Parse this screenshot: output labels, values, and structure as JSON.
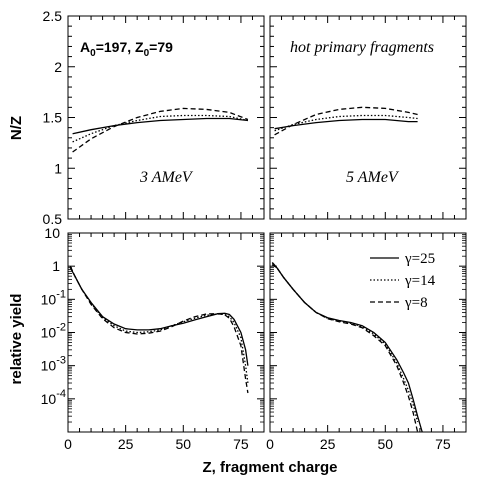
{
  "chart_data": [
    {
      "type": "line",
      "panel": "top-left",
      "ylabel": "N/Z",
      "ylim": [
        0.5,
        2.5
      ],
      "xlim": [
        0,
        85
      ],
      "yticks": [
        "0.5",
        "1",
        "1.5",
        "2",
        "2.5"
      ],
      "annotation_A": "197",
      "annotation_Z": "79",
      "energy_label": "3 AMeV",
      "series": [
        {
          "x": [
            2,
            10,
            20,
            30,
            40,
            50,
            60,
            70,
            78
          ],
          "y": [
            1.34,
            1.38,
            1.42,
            1.45,
            1.47,
            1.48,
            1.49,
            1.49,
            1.47
          ]
        },
        {
          "x": [
            2,
            10,
            20,
            30,
            40,
            50,
            60,
            70,
            78
          ],
          "y": [
            1.26,
            1.34,
            1.42,
            1.47,
            1.51,
            1.52,
            1.52,
            1.51,
            1.47
          ]
        },
        {
          "x": [
            2,
            10,
            20,
            30,
            40,
            50,
            60,
            70,
            78
          ],
          "y": [
            1.16,
            1.29,
            1.41,
            1.5,
            1.56,
            1.59,
            1.58,
            1.55,
            1.48
          ]
        }
      ]
    },
    {
      "type": "line",
      "panel": "top-right",
      "xlim": [
        0,
        85
      ],
      "ylim": [
        0.5,
        2.5
      ],
      "title": "hot primary fragments",
      "energy_label": "5 AMeV",
      "series": [
        {
          "x": [
            2,
            10,
            20,
            30,
            40,
            50,
            60,
            64
          ],
          "y": [
            1.39,
            1.42,
            1.45,
            1.47,
            1.48,
            1.48,
            1.46,
            1.46
          ]
        },
        {
          "x": [
            2,
            10,
            20,
            30,
            40,
            50,
            60,
            64
          ],
          "y": [
            1.37,
            1.43,
            1.48,
            1.51,
            1.52,
            1.52,
            1.5,
            1.49
          ]
        },
        {
          "x": [
            2,
            10,
            20,
            30,
            40,
            50,
            60,
            64
          ],
          "y": [
            1.33,
            1.43,
            1.53,
            1.58,
            1.6,
            1.59,
            1.55,
            1.53
          ]
        }
      ]
    },
    {
      "type": "line",
      "panel": "bottom-left",
      "ylabel": "relative yield",
      "ylim": [
        1e-05,
        10
      ],
      "yscale": "log",
      "xlim": [
        0,
        85
      ],
      "yticks": [
        {
          "base": "10",
          "exp": ""
        },
        {
          "base": "1",
          "exp": ""
        },
        {
          "base": "10",
          "exp": "-1"
        },
        {
          "base": "10",
          "exp": "-2"
        },
        {
          "base": "10",
          "exp": "-3"
        },
        {
          "base": "10",
          "exp": "-4"
        }
      ],
      "series": [
        {
          "x": [
            1,
            3,
            6,
            10,
            15,
            20,
            25,
            30,
            35,
            40,
            45,
            50,
            55,
            60,
            65,
            68,
            70,
            72,
            75,
            77,
            78
          ],
          "y": [
            0.9,
            0.5,
            0.2,
            0.08,
            0.03,
            0.018,
            0.013,
            0.012,
            0.012,
            0.013,
            0.016,
            0.019,
            0.024,
            0.03,
            0.037,
            0.038,
            0.035,
            0.025,
            0.01,
            0.003,
            0.001
          ]
        },
        {
          "x": [
            1,
            3,
            6,
            10,
            15,
            20,
            25,
            30,
            35,
            40,
            45,
            50,
            55,
            60,
            65,
            68,
            70,
            72,
            75,
            77,
            78
          ],
          "y": [
            0.95,
            0.5,
            0.2,
            0.075,
            0.028,
            0.016,
            0.011,
            0.01,
            0.0105,
            0.012,
            0.016,
            0.021,
            0.027,
            0.033,
            0.036,
            0.035,
            0.03,
            0.02,
            0.007,
            0.001,
            0.0003
          ]
        },
        {
          "x": [
            1,
            3,
            6,
            10,
            15,
            20,
            25,
            30,
            35,
            40,
            45,
            50,
            55,
            60,
            65,
            68,
            70,
            72,
            75,
            77,
            78
          ],
          "y": [
            1.0,
            0.5,
            0.2,
            0.07,
            0.026,
            0.014,
            0.01,
            0.009,
            0.0095,
            0.011,
            0.015,
            0.022,
            0.03,
            0.036,
            0.037,
            0.034,
            0.027,
            0.015,
            0.004,
            0.0004,
            0.00015
          ]
        }
      ]
    },
    {
      "type": "line",
      "panel": "bottom-right",
      "xlim": [
        0,
        85
      ],
      "ylim": [
        1e-05,
        10
      ],
      "yscale": "log",
      "legend_position": "top-right",
      "series": [
        {
          "name": "γ=25",
          "x": [
            1,
            3,
            6,
            10,
            15,
            20,
            25,
            30,
            35,
            40,
            45,
            50,
            55,
            58,
            60,
            62,
            64,
            66,
            67
          ],
          "y": [
            1.1,
            0.9,
            0.45,
            0.2,
            0.08,
            0.04,
            0.028,
            0.023,
            0.02,
            0.016,
            0.01,
            0.005,
            0.0015,
            0.0006,
            0.0003,
            0.0001,
            3e-05,
            1e-05,
            5e-06
          ]
        },
        {
          "name": "γ=14",
          "x": [
            1,
            3,
            6,
            10,
            15,
            20,
            25,
            30,
            35,
            40,
            45,
            50,
            55,
            58,
            60,
            62,
            64,
            66
          ],
          "y": [
            1.2,
            0.9,
            0.45,
            0.2,
            0.08,
            0.04,
            0.027,
            0.022,
            0.019,
            0.015,
            0.009,
            0.0045,
            0.0012,
            0.0004,
            0.00018,
            7e-05,
            2e-05,
            7e-06
          ]
        },
        {
          "name": "γ=8",
          "x": [
            1,
            3,
            6,
            10,
            15,
            20,
            25,
            30,
            35,
            40,
            45,
            50,
            55,
            58,
            60,
            62,
            64,
            65
          ],
          "y": [
            1.3,
            0.9,
            0.45,
            0.2,
            0.08,
            0.04,
            0.026,
            0.021,
            0.018,
            0.014,
            0.008,
            0.004,
            0.001,
            0.0003,
            0.00012,
            4e-05,
            1e-05,
            6e-06
          ]
        }
      ]
    }
  ],
  "xaxis": {
    "label": "Z, fragment charge",
    "ticks": [
      "0",
      "25",
      "50",
      "75"
    ]
  }
}
